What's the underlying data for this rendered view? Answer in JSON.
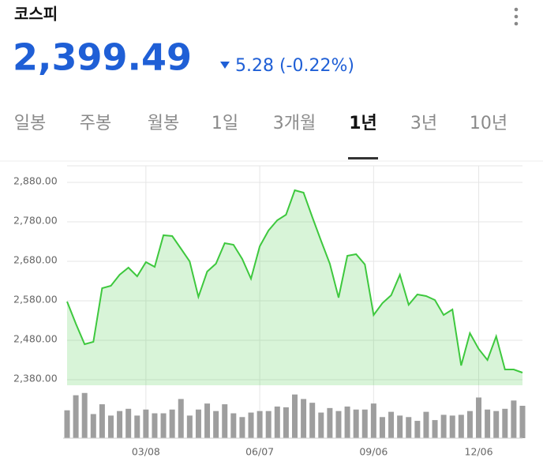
{
  "header": {
    "title": "코스피",
    "price": "2,399.49",
    "change": "5.28 (-0.22%)"
  },
  "tabs": {
    "items": [
      "일봉",
      "주봉",
      "월봉",
      "1일",
      "3개월",
      "1년",
      "3년",
      "10년"
    ],
    "selected": 5
  },
  "chart_data": {
    "type": "line",
    "categories": [
      null,
      null,
      null,
      null,
      null,
      null,
      null,
      null,
      null,
      "03/08",
      null,
      null,
      null,
      null,
      null,
      null,
      null,
      null,
      null,
      null,
      null,
      null,
      "06/07",
      null,
      null,
      null,
      null,
      null,
      null,
      null,
      null,
      null,
      null,
      null,
      null,
      "09/06",
      null,
      null,
      null,
      null,
      null,
      null,
      null,
      null,
      null,
      null,
      null,
      "12/06",
      null,
      null,
      null,
      null,
      null
    ],
    "series": [
      {
        "color": "#3ec83e",
        "values": [
          2578,
          2522,
          2470,
          2476,
          2612,
          2618,
          2646,
          2664,
          2642,
          2678,
          2666,
          2746,
          2744,
          2712,
          2680,
          2590,
          2654,
          2674,
          2726,
          2722,
          2686,
          2636,
          2718,
          2758,
          2784,
          2798,
          2860,
          2854,
          2792,
          2732,
          2674,
          2588,
          2694,
          2698,
          2672,
          2544,
          2574,
          2594,
          2646,
          2570,
          2596,
          2592,
          2582,
          2544,
          2558,
          2416,
          2498,
          2458,
          2430,
          2490,
          2406,
          2406,
          2398
        ]
      }
    ],
    "volume": {
      "color": "#9e9e9e",
      "ylim": [
        0,
        65
      ],
      "values": [
        37,
        57,
        60,
        32,
        45,
        30,
        36,
        39,
        30,
        38,
        33,
        33,
        38,
        52,
        30,
        38,
        46,
        36,
        45,
        33,
        28,
        34,
        36,
        36,
        42,
        41,
        58,
        52,
        47,
        34,
        40,
        36,
        42,
        38,
        38,
        46,
        28,
        35,
        30,
        28,
        23,
        35,
        24,
        31,
        30,
        31,
        36,
        54,
        38,
        36,
        39,
        50,
        43
      ]
    },
    "ylim": [
      2366,
      2922
    ],
    "yticks": [
      {
        "value": 2380,
        "label": "2,380.00"
      },
      {
        "value": 2480,
        "label": "2,480.00"
      },
      {
        "value": 2580,
        "label": "2,580.00"
      },
      {
        "value": 2680,
        "label": "2,680.00"
      },
      {
        "value": 2780,
        "label": "2,780.00"
      },
      {
        "value": 2880,
        "label": "2,880.00"
      }
    ],
    "grid": true
  }
}
